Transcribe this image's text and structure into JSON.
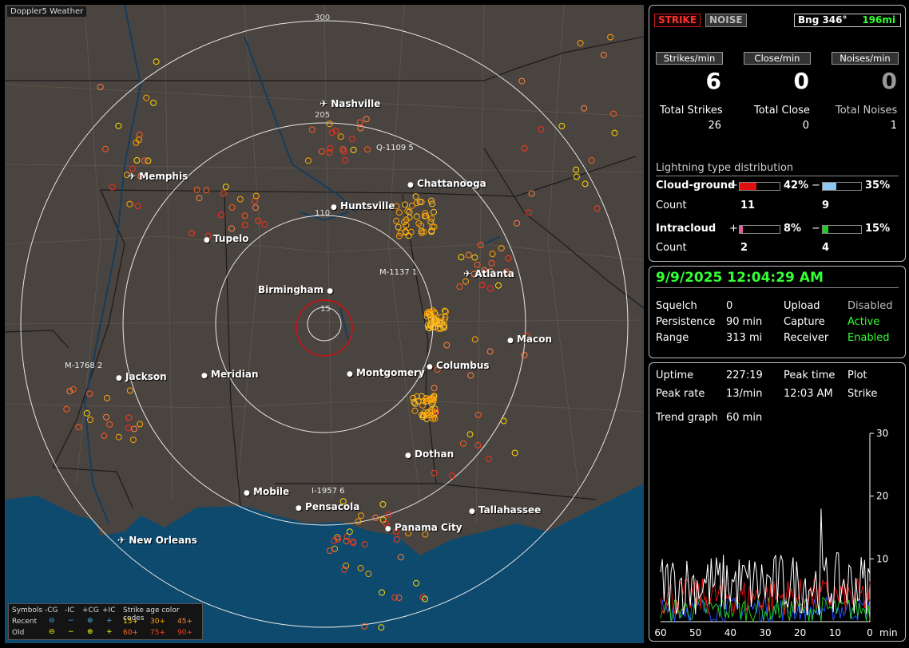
{
  "map": {
    "title": "Doppler5 Weather",
    "range_labels": [
      "15",
      "110",
      "205",
      "300"
    ],
    "cities": [
      {
        "name": "Nashville",
        "icon": "airport"
      },
      {
        "name": "Memphis",
        "icon": "airport"
      },
      {
        "name": "Chattanooga",
        "icon": "dot"
      },
      {
        "name": "Huntsville",
        "icon": "dot"
      },
      {
        "name": "Tupelo",
        "icon": "dot"
      },
      {
        "name": "Atlanta",
        "icon": "airport"
      },
      {
        "name": "Birmingham",
        "icon": "dot"
      },
      {
        "name": "Macon",
        "icon": "dot"
      },
      {
        "name": "Jackson",
        "icon": "dot"
      },
      {
        "name": "Meridian",
        "icon": "dot"
      },
      {
        "name": "Montgomery",
        "icon": "dot"
      },
      {
        "name": "Columbus",
        "icon": "dot"
      },
      {
        "name": "Dothan",
        "icon": "dot"
      },
      {
        "name": "Mobile",
        "icon": "dot"
      },
      {
        "name": "Pensacola",
        "icon": "dot"
      },
      {
        "name": "Tallahassee",
        "icon": "dot"
      },
      {
        "name": "Panama City",
        "icon": "dot"
      },
      {
        "name": "New Orleans",
        "icon": "airport"
      }
    ],
    "storm_tags": [
      "Q-1109  5",
      "M-1137 1",
      "M-1768  2",
      "I-1957  6"
    ],
    "legend": {
      "symbols_label": "Symbols",
      "cols": [
        "-CG",
        "-IC",
        "+CG",
        "+IC"
      ],
      "recent_label": "Recent",
      "old_label": "Old",
      "age_title": "Strike age color codes",
      "recent_ages": [
        "15+",
        "30+",
        "45+"
      ],
      "old_ages": [
        "60+",
        "75+",
        "90+"
      ],
      "age_colors": [
        "#ffd700",
        "#ffa500",
        "#ff7f3f",
        "#ff5a1f",
        "#ff3a1a",
        "#ff2a1a"
      ]
    }
  },
  "mode": {
    "strike": "STRIKE",
    "noise": "NOISE",
    "bearing": "Bng 346°",
    "distance": "196mi"
  },
  "rates": {
    "strikes_hdr": "Strikes/min",
    "close_hdr": "Close/min",
    "noises_hdr": "Noises/min",
    "strikes": "6",
    "close": "0",
    "noises": "0",
    "total_strikes_label": "Total Strikes",
    "total_close_label": "Total Close",
    "total_noises_label": "Total Noises",
    "total_strikes": "26",
    "total_close": "0",
    "total_noises": "1"
  },
  "distribution": {
    "title": "Lightning type distribution",
    "cg_label": "Cloud-ground",
    "ic_label": "Intracloud",
    "count_label": "Count",
    "cg_pos": {
      "sign": "+",
      "pct": "42%",
      "value": 0.42,
      "count": "11",
      "color": "#e01010"
    },
    "cg_neg": {
      "sign": "−",
      "pct": "35%",
      "value": 0.35,
      "count": "9",
      "color": "#8ec8f0"
    },
    "ic_pos": {
      "sign": "+",
      "pct": "8%",
      "value": 0.08,
      "count": "2",
      "color": "#e060a0"
    },
    "ic_neg": {
      "sign": "−",
      "pct": "15%",
      "value": 0.15,
      "count": "4",
      "color": "#22cc22"
    }
  },
  "status": {
    "datetime": "9/9/2025 12:04:29 AM",
    "squelch_label": "Squelch",
    "squelch": "0",
    "persistence_label": "Persistence",
    "persistence": "90 min",
    "range_label": "Range",
    "range": "313 mi",
    "upload_label": "Upload",
    "upload": "Disabled",
    "capture_label": "Capture",
    "capture": "Active",
    "receiver_label": "Receiver",
    "receiver": "Enabled"
  },
  "trend": {
    "uptime_label": "Uptime",
    "uptime": "227:19",
    "peak_time_label": "Peak time",
    "peak_time": "12:03 AM",
    "plot_label": "Plot",
    "peak_rate_label": "Peak rate",
    "peak_rate": "13/min",
    "plot_value": "Strike",
    "graph_label": "Trend graph",
    "graph_value": "60 min",
    "y_ticks": [
      "30",
      "20",
      "10"
    ],
    "x_ticks": [
      "60",
      "50",
      "40",
      "30",
      "20",
      "10",
      "0"
    ],
    "x_unit": "min"
  }
}
